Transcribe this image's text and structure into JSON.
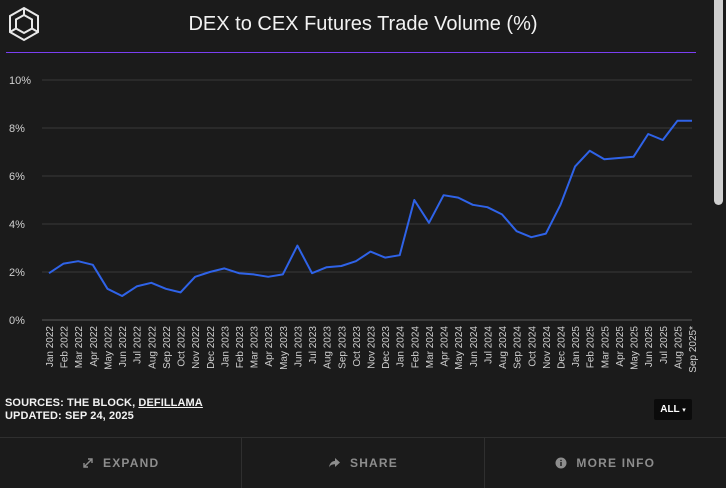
{
  "header": {
    "title": "DEX to CEX Futures Trade Volume (%)"
  },
  "sources": {
    "label": "SOURCES: THE BLOCK, ",
    "link": "DEFILLAMA",
    "updated": "UPDATED: SEP 24, 2025"
  },
  "range_button": {
    "label": "ALL",
    "arrow": "▾"
  },
  "footer": {
    "expand": "EXPAND",
    "share": "SHARE",
    "more_info": "MORE INFO"
  },
  "colors": {
    "line": "#2f63e8",
    "accent_rule": "#7a3ff2",
    "background": "#1b1b1b"
  },
  "icons": {
    "logo": "cube-logo-icon",
    "expand": "expand-arrows-icon",
    "share": "share-arrow-icon",
    "more_info": "info-circle-icon"
  },
  "chart_data": {
    "type": "line",
    "title": "DEX to CEX Futures Trade Volume (%)",
    "xlabel": "",
    "ylabel": "",
    "ylim": [
      0,
      10
    ],
    "yticks": [
      "0%",
      "2%",
      "4%",
      "6%",
      "8%",
      "10%"
    ],
    "grid": true,
    "categories": [
      "Jan 2022",
      "Feb 2022",
      "Mar 2022",
      "Apr 2022",
      "May 2022",
      "Jun 2022",
      "Jul 2022",
      "Aug 2022",
      "Sep 2022",
      "Oct 2022",
      "Nov 2022",
      "Dec 2022",
      "Jan 2023",
      "Feb 2023",
      "Mar 2023",
      "Apr 2023",
      "May 2023",
      "Jun 2023",
      "Jul 2023",
      "Aug 2023",
      "Sep 2023",
      "Oct 2023",
      "Nov 2023",
      "Dec 2023",
      "Jan 2024",
      "Feb 2024",
      "Mar 2024",
      "Apr 2024",
      "May 2024",
      "Jun 2024",
      "Jul 2024",
      "Aug 2024",
      "Sep 2024",
      "Oct 2024",
      "Nov 2024",
      "Dec 2024",
      "Jan 2025",
      "Feb 2025",
      "Mar 2025",
      "Apr 2025",
      "May 2025",
      "Jun 2025",
      "Jul 2025",
      "Aug 2025",
      "Sep 2025*"
    ],
    "values": [
      1.95,
      2.35,
      2.45,
      2.3,
      1.3,
      1.0,
      1.4,
      1.55,
      1.3,
      1.15,
      1.8,
      2.0,
      2.15,
      1.95,
      1.9,
      1.8,
      1.9,
      3.1,
      1.95,
      2.2,
      2.25,
      2.45,
      2.85,
      2.6,
      2.7,
      5.0,
      4.05,
      5.2,
      5.1,
      4.8,
      4.7,
      4.4,
      3.7,
      3.45,
      3.6,
      4.8,
      6.4,
      7.05,
      6.7,
      6.75,
      6.8,
      7.75,
      7.5,
      8.3,
      8.3
    ]
  }
}
